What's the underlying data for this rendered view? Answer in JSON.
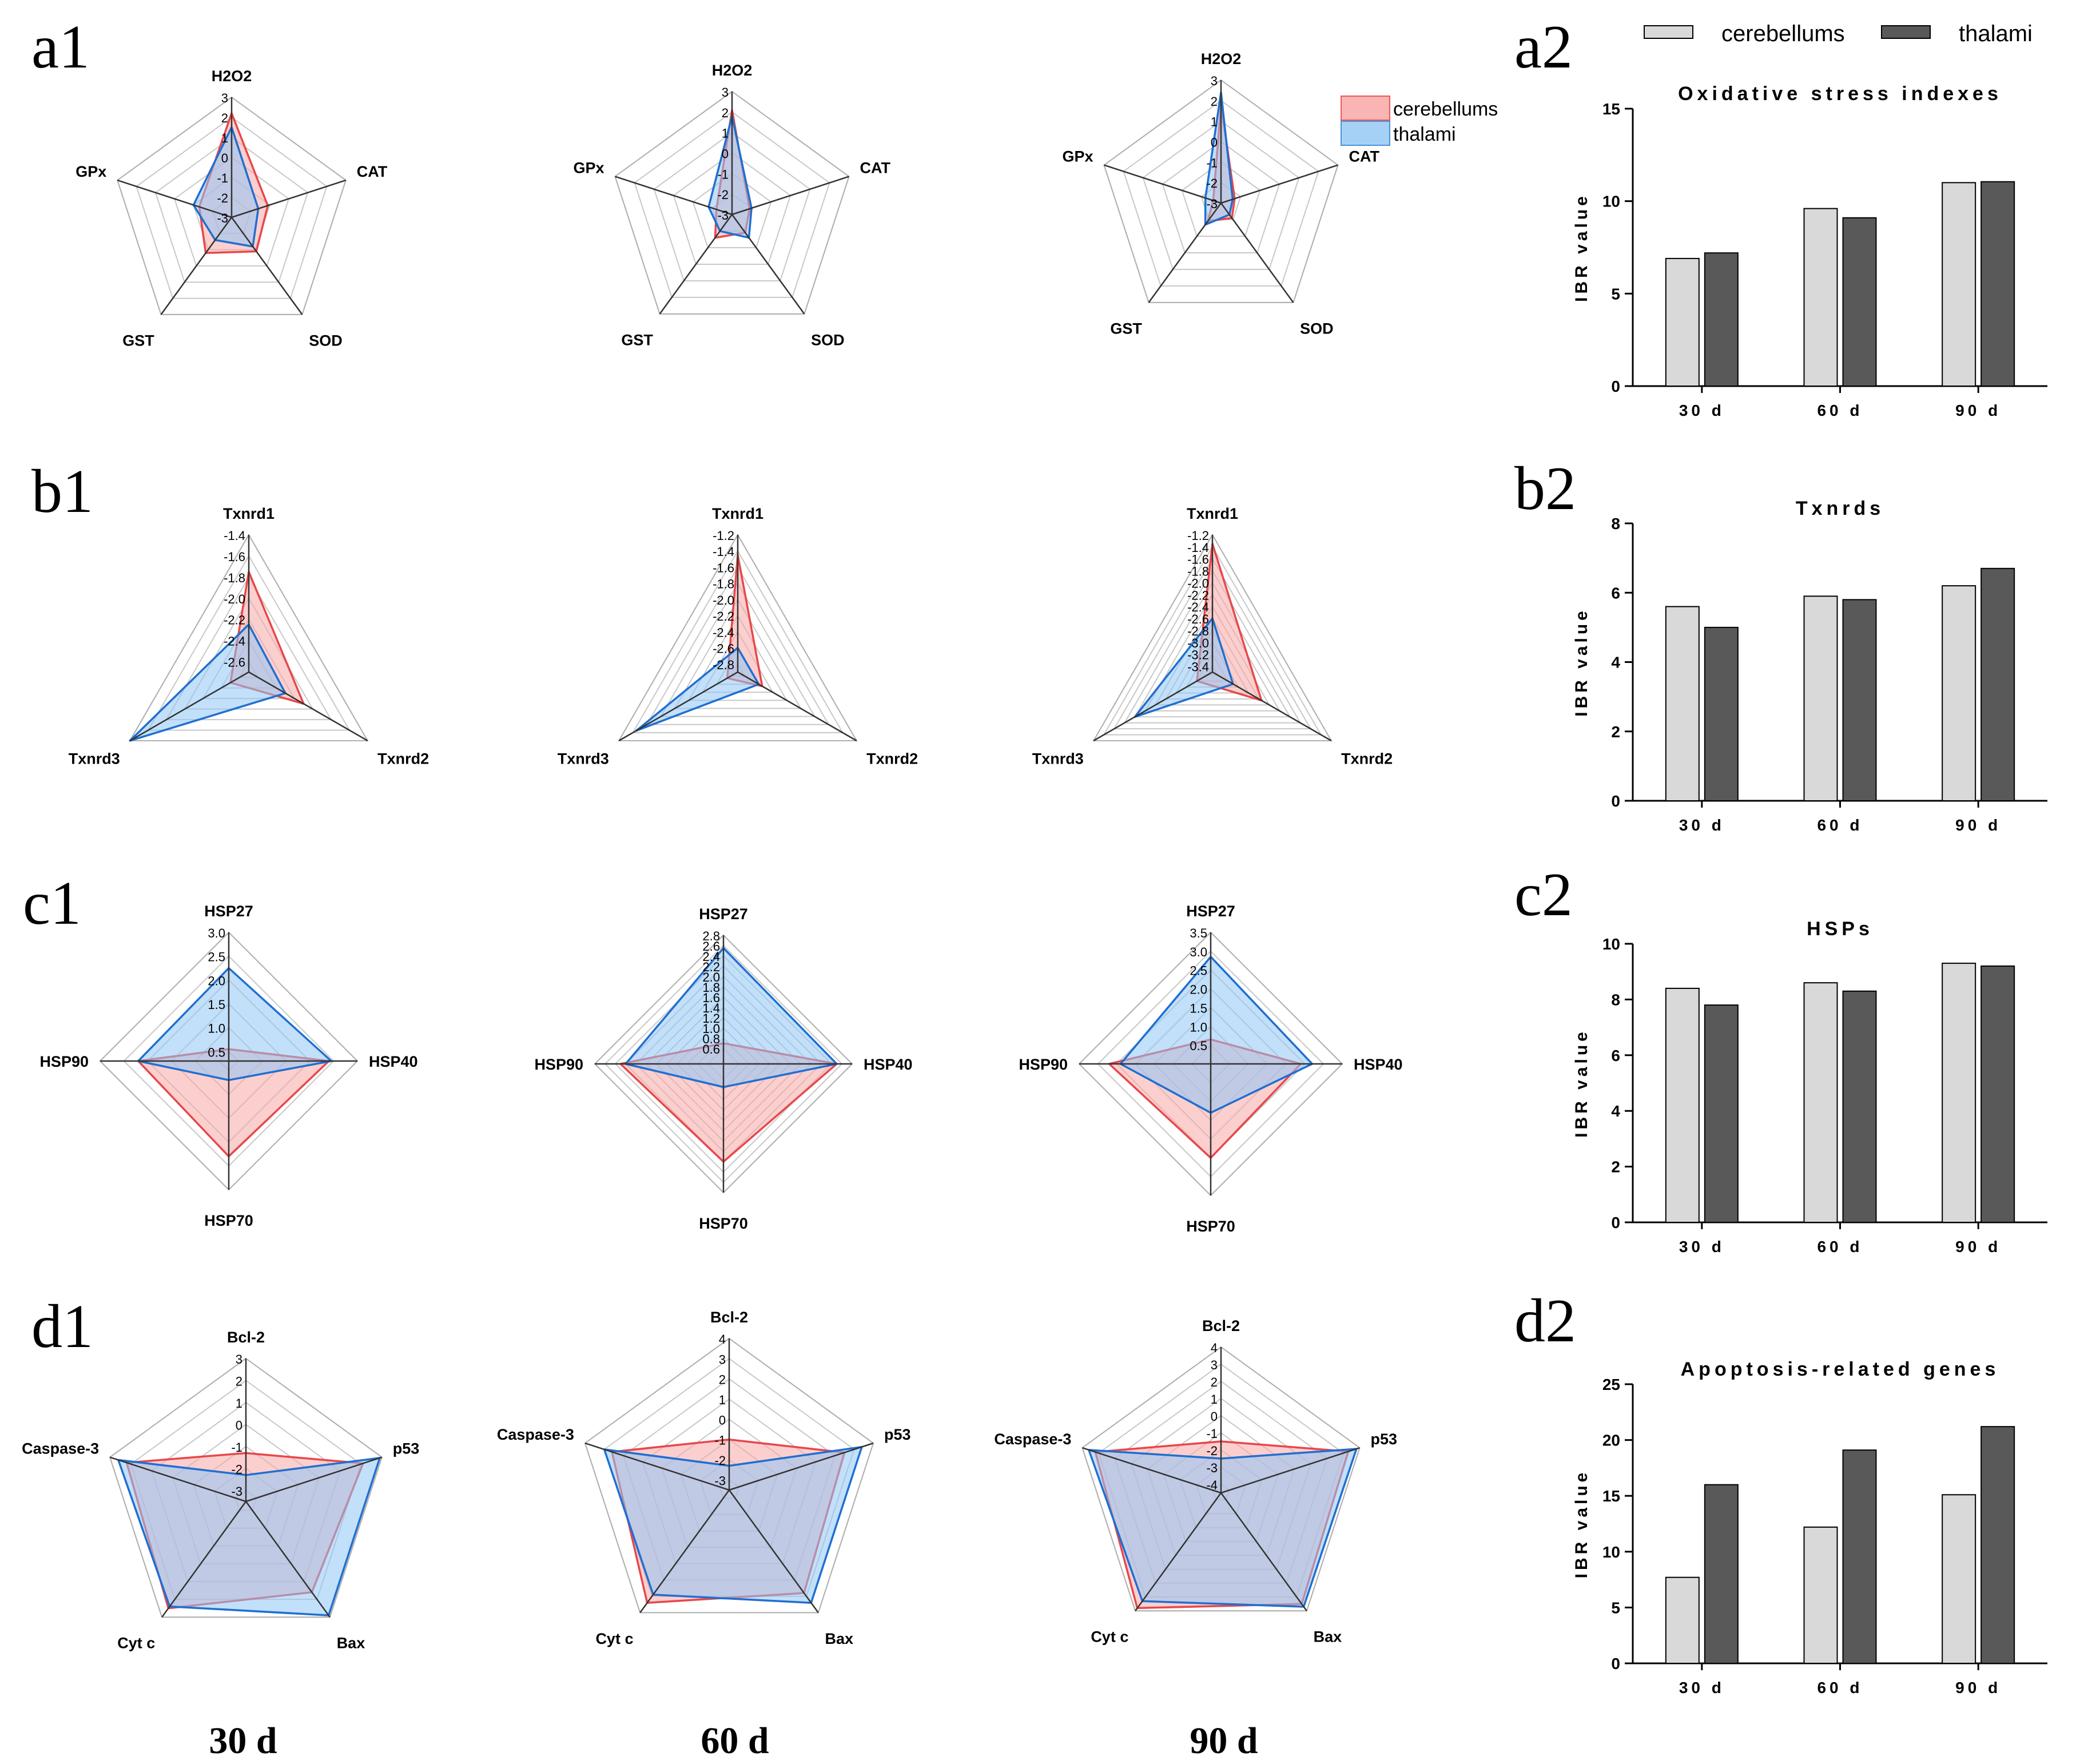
{
  "panel_labels": [
    "a1",
    "a2",
    "b1",
    "b2",
    "c1",
    "c2",
    "d1",
    "d2"
  ],
  "day_labels": [
    "30 d",
    "60 d",
    "90 d"
  ],
  "radar_legend": {
    "items": [
      "cerebellums",
      "thalami"
    ],
    "colors": [
      "#f59a9a",
      "#8fc4f5"
    ]
  },
  "bar_legend": {
    "items": [
      "cerebellums",
      "thalami"
    ],
    "colors": [
      "#d9d9d9",
      "#595959"
    ]
  },
  "chart_data": [
    {
      "id": "a1-30d",
      "type": "radar",
      "axes": [
        "H2O2",
        "CAT",
        "SOD",
        "GST",
        "GPx"
      ],
      "rmin": -3,
      "rmax": 3,
      "ticks": [
        3,
        2,
        1,
        0,
        -1,
        -2,
        -3
      ],
      "ticklabels": [
        "3",
        "2",
        "1",
        "0",
        "-1",
        "-2",
        "-3"
      ],
      "series": [
        {
          "name": "cerebellums",
          "values": [
            2.2,
            -1.1,
            -0.9,
            -0.8,
            -1.3
          ]
        },
        {
          "name": "thalami",
          "values": [
            1.5,
            -1.6,
            -1.2,
            -1.6,
            -1.0
          ]
        }
      ]
    },
    {
      "id": "a1-60d",
      "type": "radar",
      "axes": [
        "H2O2",
        "CAT",
        "SOD",
        "GST",
        "GPx"
      ],
      "rmin": -3,
      "rmax": 3,
      "ticks": [
        3,
        2,
        1,
        0,
        -1,
        -2,
        -3
      ],
      "ticklabels": [
        "3",
        "2",
        "1",
        "0",
        "-1",
        "-2",
        "-3"
      ],
      "series": [
        {
          "name": "cerebellums",
          "values": [
            2.1,
            -2.1,
            -1.9,
            -1.6,
            -2.2
          ]
        },
        {
          "name": "thalami",
          "values": [
            1.8,
            -2.0,
            -1.6,
            -2.0,
            -1.8
          ]
        }
      ]
    },
    {
      "id": "a1-90d",
      "type": "radar",
      "axes": [
        "H2O2",
        "CAT",
        "SOD",
        "GST",
        "GPx"
      ],
      "rmin": -3,
      "rmax": 3,
      "ticks": [
        3,
        2,
        1,
        0,
        -1,
        -2,
        -3
      ],
      "ticklabels": [
        "3",
        "2",
        "1",
        "0",
        "-1",
        "-2",
        "-3"
      ],
      "series": [
        {
          "name": "cerebellums",
          "values": [
            1.8,
            -2.3,
            -2.1,
            -1.9,
            -2.6
          ]
        },
        {
          "name": "thalami",
          "values": [
            2.4,
            -2.4,
            -2.3,
            -1.7,
            -2.2
          ]
        }
      ]
    },
    {
      "id": "b1-30d",
      "type": "radar",
      "axes": [
        "Txnrd1",
        "Txnrd2",
        "Txnrd3"
      ],
      "rmin": -2.7,
      "rmax": -1.4,
      "ticks": [
        -1.4,
        -1.6,
        -1.8,
        -2.0,
        -2.2,
        -2.4,
        -2.6
      ],
      "ticklabels": [
        "-1.4",
        "-1.6",
        "-1.8",
        "-2.0",
        "-2.2",
        "-2.4",
        "-2.6"
      ],
      "series": [
        {
          "name": "cerebellums",
          "values": [
            -1.75,
            -2.1,
            -2.5
          ]
        },
        {
          "name": "thalami",
          "values": [
            -2.25,
            -2.3,
            -1.4
          ]
        }
      ]
    },
    {
      "id": "b1-60d",
      "type": "radar",
      "axes": [
        "Txnrd1",
        "Txnrd2",
        "Txnrd3"
      ],
      "rmin": -2.9,
      "rmax": -1.2,
      "ticks": [
        -1.2,
        -1.4,
        -1.6,
        -1.8,
        -2.0,
        -2.2,
        -2.4,
        -2.6,
        -2.8
      ],
      "ticklabels": [
        "-1.2",
        "-1.4",
        "-1.6",
        "-1.8",
        "-2.0",
        "-2.2",
        "-2.4",
        "-2.6",
        "-2.8"
      ],
      "series": [
        {
          "name": "cerebellums",
          "values": [
            -1.45,
            -2.55,
            -2.75
          ]
        },
        {
          "name": "thalami",
          "values": [
            -2.6,
            -2.6,
            -1.45
          ]
        }
      ]
    },
    {
      "id": "b1-90d",
      "type": "radar",
      "axes": [
        "Txnrd1",
        "Txnrd2",
        "Txnrd3"
      ],
      "rmin": -3.5,
      "rmax": -1.2,
      "ticks": [
        -1.2,
        -1.4,
        -1.6,
        -1.8,
        -2.0,
        -2.2,
        -2.4,
        -2.6,
        -2.8,
        -3.0,
        -3.2,
        -3.4
      ],
      "ticklabels": [
        "-1.2",
        "-1.4",
        "-1.6",
        "-1.8",
        "-2.0",
        "-2.2",
        "-2.4",
        "-2.6",
        "-2.8",
        "-3.0",
        "-3.2",
        "-3.4"
      ],
      "series": [
        {
          "name": "cerebellums",
          "values": [
            -1.35,
            -2.55,
            -3.2
          ]
        },
        {
          "name": "thalami",
          "values": [
            -2.6,
            -3.1,
            -2.0
          ]
        }
      ]
    },
    {
      "id": "c1-30d",
      "type": "radar",
      "axes": [
        "HSP27",
        "HSP40",
        "HSP70",
        "HSP90"
      ],
      "rmin": 0.3,
      "rmax": 3.0,
      "ticks": [
        3.0,
        2.5,
        2.0,
        1.5,
        1.0,
        0.5
      ],
      "ticklabels": [
        "3.0",
        "2.5",
        "2.0",
        "1.5",
        "1.0",
        "0.5"
      ],
      "series": [
        {
          "name": "cerebellums",
          "values": [
            0.55,
            2.4,
            2.3,
            2.2
          ]
        },
        {
          "name": "thalami",
          "values": [
            2.25,
            2.45,
            0.7,
            2.2
          ]
        }
      ]
    },
    {
      "id": "c1-60d",
      "type": "radar",
      "axes": [
        "HSP27",
        "HSP40",
        "HSP70",
        "HSP90"
      ],
      "rmin": 0.3,
      "rmax": 2.8,
      "ticks": [
        2.8,
        2.6,
        2.4,
        2.2,
        2.0,
        1.8,
        1.6,
        1.4,
        1.2,
        1.0,
        0.8,
        0.6
      ],
      "ticklabels": [
        "2.8",
        "2.6",
        "2.4",
        "2.2",
        "2.0",
        "1.8",
        "1.6",
        "1.4",
        "1.2",
        "1.0",
        "0.8",
        "0.6"
      ],
      "series": [
        {
          "name": "cerebellums",
          "values": [
            0.7,
            2.5,
            2.2,
            2.3
          ]
        },
        {
          "name": "thalami",
          "values": [
            2.55,
            2.5,
            0.75,
            2.2
          ]
        }
      ]
    },
    {
      "id": "c1-90d",
      "type": "radar",
      "axes": [
        "HSP27",
        "HSP40",
        "HSP70",
        "HSP90"
      ],
      "rmin": 0.0,
      "rmax": 3.5,
      "ticks": [
        3.5,
        3.0,
        2.5,
        2.0,
        1.5,
        1.0,
        0.5
      ],
      "ticklabels": [
        "3.5",
        "3.0",
        "2.5",
        "2.0",
        "1.5",
        "1.0",
        "0.5"
      ],
      "series": [
        {
          "name": "cerebellums",
          "values": [
            0.65,
            2.4,
            2.5,
            2.7
          ]
        },
        {
          "name": "thalami",
          "values": [
            2.85,
            2.7,
            1.3,
            2.4
          ]
        }
      ]
    },
    {
      "id": "d1-30d",
      "type": "radar",
      "axes": [
        "Bcl-2",
        "p53",
        "Bax",
        "Cyt c",
        "Caspase-3"
      ],
      "rmin": -3.5,
      "rmax": 3,
      "ticks": [
        3,
        2,
        1,
        0,
        -1,
        -2,
        -3
      ],
      "ticklabels": [
        "3",
        "2",
        "1",
        "0",
        "-1",
        "-2",
        "-3"
      ],
      "series": [
        {
          "name": "cerebellums",
          "values": [
            -1.3,
            2.1,
            1.6,
            2.5,
            2.2
          ]
        },
        {
          "name": "thalami",
          "values": [
            -2.3,
            2.9,
            2.9,
            2.4,
            2.6
          ]
        }
      ]
    },
    {
      "id": "d1-60d",
      "type": "radar",
      "axes": [
        "Bcl-2",
        "p53",
        "Bax",
        "Cyt c",
        "Caspase-3"
      ],
      "rmin": -3.5,
      "rmax": 4,
      "ticks": [
        4,
        3,
        2,
        1,
        0,
        -1,
        -2,
        -3
      ],
      "ticklabels": [
        "4",
        "3",
        "2",
        "1",
        "0",
        "-1",
        "-2",
        "-3"
      ],
      "series": [
        {
          "name": "cerebellums",
          "values": [
            -1.0,
            2.5,
            2.8,
            3.4,
            2.6
          ]
        },
        {
          "name": "thalami",
          "values": [
            -2.3,
            3.4,
            3.4,
            2.9,
            3.0
          ]
        }
      ]
    },
    {
      "id": "d1-90d",
      "type": "radar",
      "axes": [
        "Bcl-2",
        "p53",
        "Bax",
        "Cyt c",
        "Caspase-3"
      ],
      "rmin": -4.5,
      "rmax": 4,
      "ticks": [
        4,
        3,
        2,
        1,
        0,
        -1,
        -2,
        -3,
        -4
      ],
      "ticklabels": [
        "4",
        "3",
        "2",
        "1",
        "0",
        "-1",
        "-2",
        "-3",
        "-4"
      ],
      "series": [
        {
          "name": "cerebellums",
          "values": [
            -1.5,
            3.3,
            3.5,
            3.8,
            3.2
          ]
        },
        {
          "name": "thalami",
          "values": [
            -2.5,
            3.8,
            3.7,
            3.3,
            3.6
          ]
        }
      ]
    },
    {
      "id": "a2",
      "type": "bar",
      "title": "Oxidative stress indexes",
      "ylabel": "IBR value",
      "categories": [
        "30 d",
        "60 d",
        "90 d"
      ],
      "ylim": [
        0,
        15
      ],
      "yticks": [
        0,
        5,
        10,
        15
      ],
      "yticklabels": [
        "0",
        "5",
        "10",
        "15"
      ],
      "series": [
        {
          "name": "cerebellums",
          "values": [
            6.9,
            9.6,
            11.0
          ]
        },
        {
          "name": "thalami",
          "values": [
            7.2,
            9.1,
            11.05
          ]
        }
      ]
    },
    {
      "id": "b2",
      "type": "bar",
      "title": "Txnrds",
      "ylabel": "IBR value",
      "categories": [
        "30 d",
        "60 d",
        "90 d"
      ],
      "ylim": [
        0,
        8
      ],
      "yticks": [
        0,
        2,
        4,
        6,
        8
      ],
      "yticklabels": [
        "0",
        "2",
        "4",
        "6",
        "8"
      ],
      "series": [
        {
          "name": "cerebellums",
          "values": [
            5.6,
            5.9,
            6.2
          ]
        },
        {
          "name": "thalami",
          "values": [
            5.0,
            5.8,
            6.7
          ]
        }
      ]
    },
    {
      "id": "c2",
      "type": "bar",
      "title": "HSPs",
      "ylabel": "IBR value",
      "categories": [
        "30 d",
        "60 d",
        "90 d"
      ],
      "ylim": [
        0,
        10
      ],
      "yticks": [
        0,
        2,
        4,
        6,
        8,
        10
      ],
      "yticklabels": [
        "0",
        "2",
        "4",
        "6",
        "8",
        "10"
      ],
      "series": [
        {
          "name": "cerebellums",
          "values": [
            8.4,
            8.6,
            9.3
          ]
        },
        {
          "name": "thalami",
          "values": [
            7.8,
            8.3,
            9.2
          ]
        }
      ]
    },
    {
      "id": "d2",
      "type": "bar",
      "title": "Apoptosis-related genes",
      "ylabel": "IBR value",
      "categories": [
        "30 d",
        "60 d",
        "90 d"
      ],
      "ylim": [
        0,
        25
      ],
      "yticks": [
        0,
        5,
        10,
        15,
        20,
        25
      ],
      "yticklabels": [
        "0",
        "5",
        "10",
        "15",
        "20",
        "25"
      ],
      "series": [
        {
          "name": "cerebellums",
          "values": [
            7.7,
            12.2,
            15.1
          ]
        },
        {
          "name": "thalami",
          "values": [
            16.0,
            19.1,
            21.2
          ]
        }
      ]
    }
  ]
}
